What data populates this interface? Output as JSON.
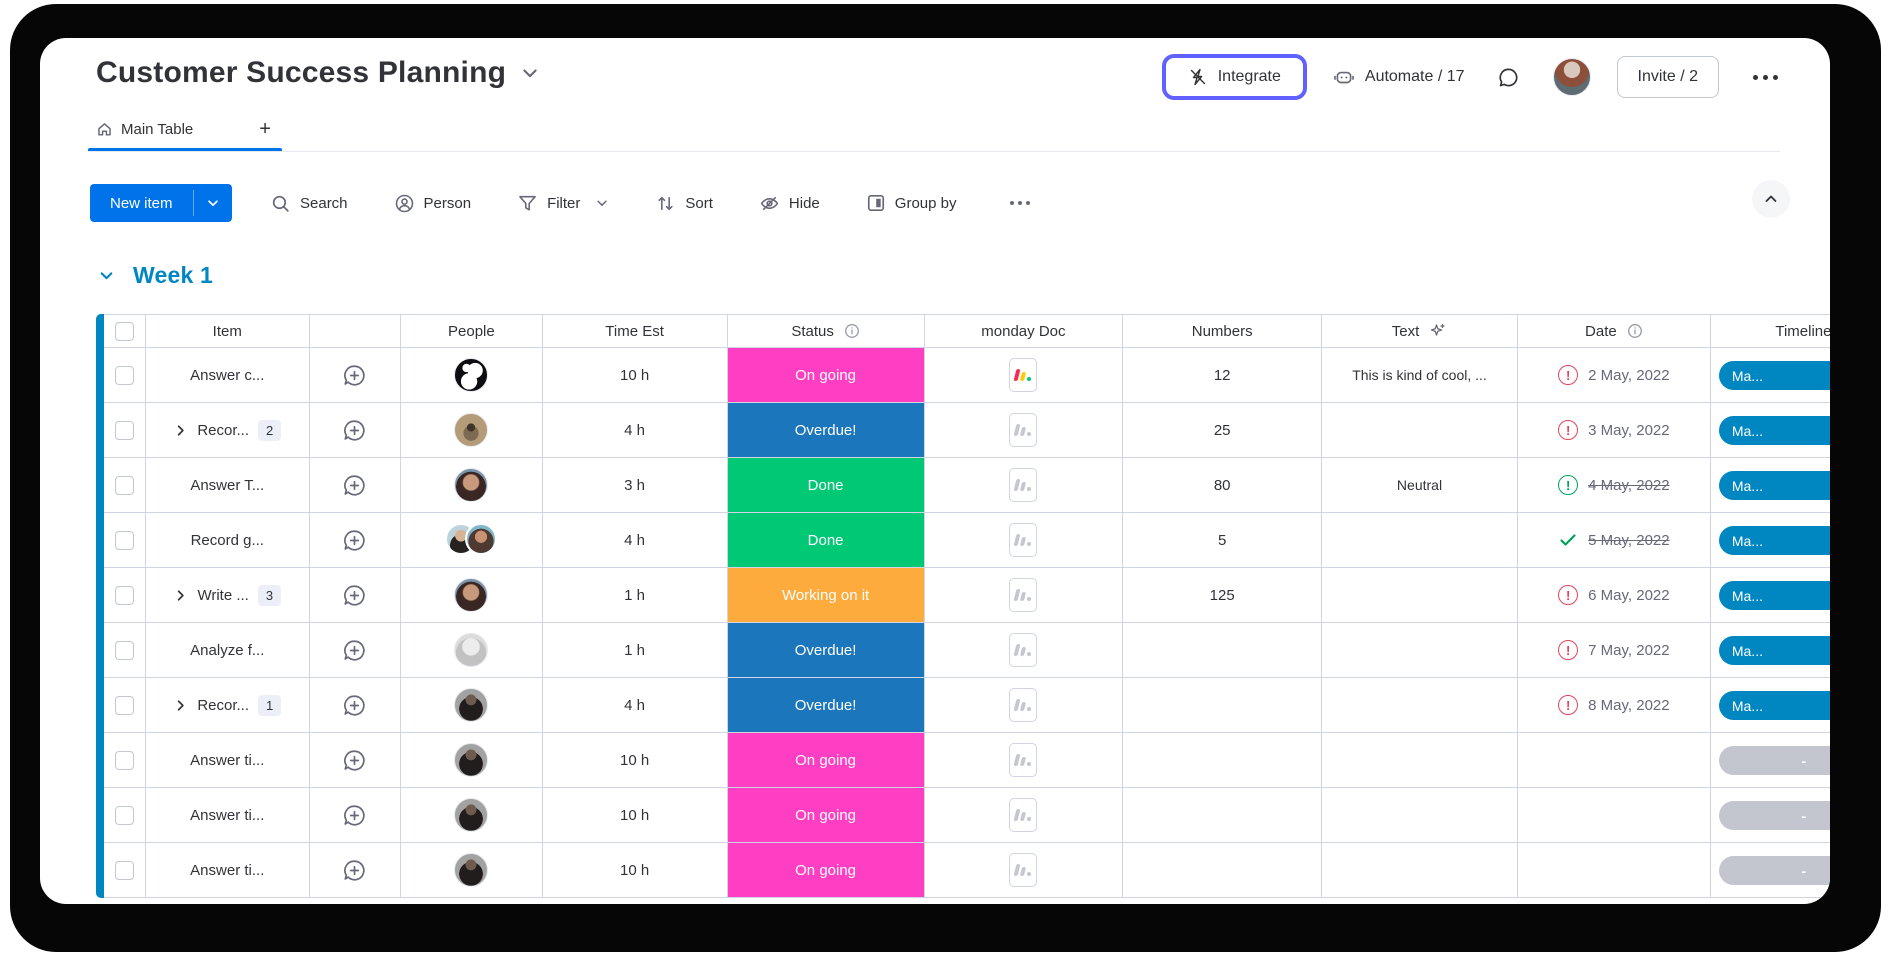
{
  "header": {
    "title": "Customer Success Planning",
    "integrate_label": "Integrate",
    "automate_label": "Automate / 17",
    "invite_label": "Invite / 2"
  },
  "tabs": {
    "main_tab": "Main Table",
    "add_tab": "+"
  },
  "toolbar": {
    "new_item": "New item",
    "search": "Search",
    "person": "Person",
    "filter": "Filter",
    "sort": "Sort",
    "hide": "Hide",
    "group_by": "Group by"
  },
  "group": {
    "name": "Week 1",
    "color": "#0086c0"
  },
  "colors": {
    "primary_blue": "#0073ea",
    "highlight_purple": "#6161ff",
    "group_blue": "#0086c0",
    "timeline_blue": "#0086c0",
    "timeline_gray": "#c4c6cf",
    "red_alert": "#e2445c",
    "green_ok": "#00a25b",
    "status": {
      "On going": "#ff3fc3",
      "Overdue!": "#1c76bc",
      "Done": "#00c875",
      "Working on it": "#fdab3d"
    }
  },
  "table": {
    "columns": [
      "Item",
      "People",
      "Time Est",
      "Status",
      "monday Doc",
      "Numbers",
      "Text",
      "Date",
      "Timeline"
    ],
    "rows": [
      {
        "item": "Answer c...",
        "expand": false,
        "count": "",
        "avatar": "penguin",
        "time": "10 h",
        "status": "On going",
        "doc": "color",
        "numbers": "12",
        "text": "This is kind of cool, ...",
        "date": "2 May, 2022",
        "date_icon": "red-alert",
        "date_strike": false,
        "timeline": "Ma...",
        "timeline_kind": "active"
      },
      {
        "item": "Recor...",
        "expand": true,
        "count": "2",
        "avatar": "pug",
        "time": "4 h",
        "status": "Overdue!",
        "doc": "gray",
        "numbers": "25",
        "text": "",
        "date": "3 May, 2022",
        "date_icon": "red-alert",
        "date_strike": false,
        "timeline": "Ma...",
        "timeline_kind": "active"
      },
      {
        "item": "Answer T...",
        "expand": false,
        "count": "",
        "avatar": "woman1",
        "time": "3 h",
        "status": "Done",
        "doc": "gray",
        "numbers": "80",
        "text": "Neutral",
        "date": "4 May, 2022",
        "date_icon": "green-alert",
        "date_strike": true,
        "timeline": "Ma...",
        "timeline_kind": "active"
      },
      {
        "item": "Record g...",
        "expand": false,
        "count": "",
        "avatar": "pair",
        "time": "4 h",
        "status": "Done",
        "doc": "gray",
        "numbers": "5",
        "text": "",
        "date": "5 May, 2022",
        "date_icon": "green-check",
        "date_strike": true,
        "timeline": "Ma...",
        "timeline_kind": "active"
      },
      {
        "item": "Write ...",
        "expand": true,
        "count": "3",
        "avatar": "woman1",
        "time": "1 h",
        "status": "Working on it",
        "doc": "gray",
        "numbers": "125",
        "text": "",
        "date": "6 May, 2022",
        "date_icon": "red-alert",
        "date_strike": false,
        "timeline": "Ma...",
        "timeline_kind": "active"
      },
      {
        "item": "Analyze f...",
        "expand": false,
        "count": "",
        "avatar": "gray",
        "time": "1 h",
        "status": "Overdue!",
        "doc": "gray",
        "numbers": "",
        "text": "",
        "date": "7 May, 2022",
        "date_icon": "red-alert",
        "date_strike": false,
        "timeline": "Ma...",
        "timeline_kind": "active"
      },
      {
        "item": "Recor...",
        "expand": true,
        "count": "1",
        "avatar": "woman2",
        "time": "4 h",
        "status": "Overdue!",
        "doc": "gray",
        "numbers": "",
        "text": "",
        "date": "8 May, 2022",
        "date_icon": "red-alert",
        "date_strike": false,
        "timeline": "Ma...",
        "timeline_kind": "active"
      },
      {
        "item": "Answer ti...",
        "expand": false,
        "count": "",
        "avatar": "woman2",
        "time": "10 h",
        "status": "On going",
        "doc": "gray",
        "numbers": "",
        "text": "",
        "date": "",
        "date_icon": "",
        "date_strike": false,
        "timeline": "-",
        "timeline_kind": "empty"
      },
      {
        "item": "Answer ti...",
        "expand": false,
        "count": "",
        "avatar": "woman2",
        "time": "10 h",
        "status": "On going",
        "doc": "gray",
        "numbers": "",
        "text": "",
        "date": "",
        "date_icon": "",
        "date_strike": false,
        "timeline": "-",
        "timeline_kind": "empty"
      },
      {
        "item": "Answer ti...",
        "expand": false,
        "count": "",
        "avatar": "woman2",
        "time": "10 h",
        "status": "On going",
        "doc": "gray",
        "numbers": "",
        "text": "",
        "date": "",
        "date_icon": "",
        "date_strike": false,
        "timeline": "-",
        "timeline_kind": "empty"
      }
    ]
  }
}
